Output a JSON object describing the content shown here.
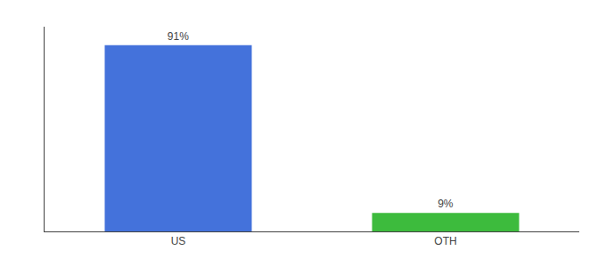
{
  "chart_data": {
    "type": "bar",
    "categories": [
      "US",
      "OTH"
    ],
    "values": [
      91,
      9
    ],
    "value_labels": [
      "91%",
      "9%"
    ],
    "colors": [
      "#4472db",
      "#3dbb3d"
    ],
    "ylim": [
      0,
      100
    ],
    "data_labels": true,
    "tick_labels": "x",
    "grid": false
  }
}
